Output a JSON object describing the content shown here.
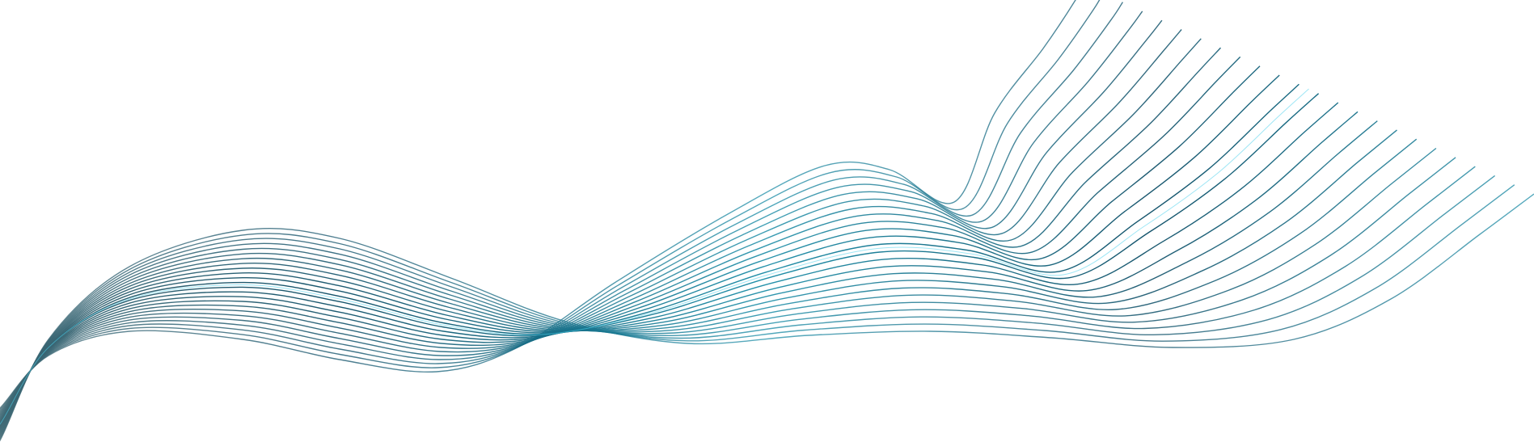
{
  "artwork": {
    "kind": "abstract-wave-line-pattern",
    "line_count": 24,
    "background_color": "#ffffff",
    "palette": {
      "deep_teal": "#12526a",
      "mid_teal": "#1e8ea8",
      "bright_cyan": "#4fd2ec",
      "slate": "#3d6773"
    }
  }
}
